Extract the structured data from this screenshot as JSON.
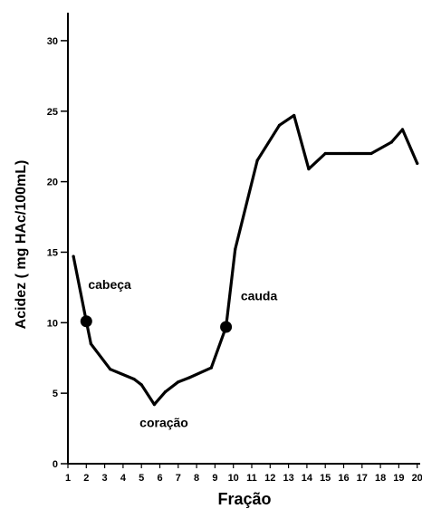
{
  "chart_data": {
    "type": "line",
    "title": "",
    "xlabel": "Fração",
    "ylabel": "Acidez ( mg HAc/100mL)",
    "xlim": [
      1,
      20
    ],
    "ylim": [
      0,
      32
    ],
    "x_ticks": [
      "1",
      "2",
      "3",
      "4",
      "5",
      "6",
      "7",
      "8",
      "9",
      "10",
      "11",
      "12",
      "13",
      "14",
      "15",
      "16",
      "17",
      "18",
      "19",
      "20"
    ],
    "y_ticks": [
      "0",
      "5",
      "10",
      "15",
      "20",
      "25",
      "30"
    ],
    "grid": false,
    "legend": "none",
    "series": [
      {
        "x": [
          1.3,
          2.0,
          2.25,
          3.3,
          4.6,
          5.0,
          5.7,
          6.3,
          7.0,
          7.6,
          8.8,
          9.6,
          10.1,
          11.3,
          12.5,
          13.3,
          14.1,
          15.0,
          16.3,
          17.5,
          18.6,
          19.2,
          20.0
        ],
        "y": [
          14.7,
          10.1,
          8.5,
          6.7,
          6.0,
          5.6,
          4.2,
          5.1,
          5.8,
          6.1,
          6.8,
          9.7,
          15.2,
          21.5,
          24.0,
          24.7,
          20.9,
          22.0,
          22.0,
          22.0,
          22.8,
          23.7,
          21.3
        ],
        "color": "#000000"
      }
    ],
    "markers": [
      {
        "x": 2.0,
        "y": 10.1
      },
      {
        "x": 9.6,
        "y": 9.7
      }
    ],
    "annotations": [
      {
        "text": "cabeça",
        "x": 2.1,
        "y": 12.4
      },
      {
        "text": "coração",
        "x": 4.9,
        "y": 2.6
      },
      {
        "text": "cauda",
        "x": 10.4,
        "y": 11.6
      }
    ]
  }
}
